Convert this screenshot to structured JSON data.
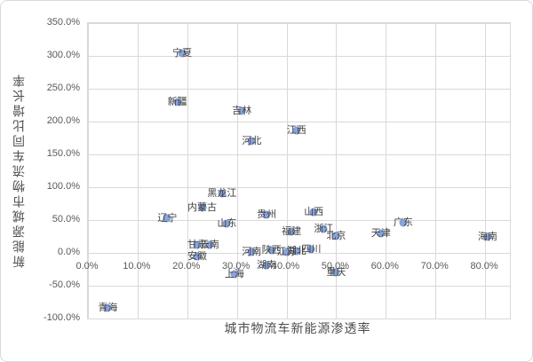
{
  "chart_data": {
    "type": "scatter",
    "title": "",
    "xlabel": "城市物流车新能源渗透率",
    "ylabel": "新能源城市物流车同比增长率",
    "xlim": [
      0,
      85
    ],
    "ylim": [
      -100,
      350
    ],
    "grid": true,
    "legend": false,
    "marker_color": "#89a5db",
    "gridline_color": "#d9d9d9",
    "tick_label_color": "#595959",
    "point_label_color": "#3f3f3f",
    "x_ticks": [
      "0.0%",
      "10.0%",
      "20.0%",
      "30.0%",
      "40.0%",
      "50.0%",
      "60.0%",
      "70.0%",
      "80.0%"
    ],
    "x_tick_values": [
      0,
      10,
      20,
      30,
      40,
      50,
      60,
      70,
      80
    ],
    "y_ticks": [
      "350.0%",
      "300.0%",
      "250.0%",
      "200.0%",
      "150.0%",
      "100.0%",
      "50.0%",
      "0.0%",
      "-50.0%",
      "-100.0%"
    ],
    "y_tick_values": [
      350,
      300,
      250,
      200,
      150,
      100,
      50,
      0,
      -50,
      -100
    ],
    "points": [
      {
        "label": "宁夏",
        "x": 19,
        "y": 304
      },
      {
        "label": "新疆",
        "x": 18,
        "y": 230
      },
      {
        "label": "吉林",
        "x": 31,
        "y": 216
      },
      {
        "label": "河北",
        "x": 33,
        "y": 170
      },
      {
        "label": "江西",
        "x": 42,
        "y": 186
      },
      {
        "label": "黑龙江",
        "x": 27,
        "y": 91
      },
      {
        "label": "内蒙古",
        "x": 23,
        "y": 69
      },
      {
        "label": "辽宁",
        "x": 16,
        "y": 53
      },
      {
        "label": "山东",
        "x": 28,
        "y": 44
      },
      {
        "label": "贵州",
        "x": 36,
        "y": 58
      },
      {
        "label": "山西",
        "x": 45.5,
        "y": 62
      },
      {
        "label": "福建",
        "x": 41,
        "y": 32
      },
      {
        "label": "浙江",
        "x": 47.5,
        "y": 36
      },
      {
        "label": "北京",
        "x": 50,
        "y": 26
      },
      {
        "label": "天津",
        "x": 59,
        "y": 30
      },
      {
        "label": "广东",
        "x": 63.5,
        "y": 46
      },
      {
        "label": "海南",
        "x": 80.5,
        "y": 25
      },
      {
        "label": "甘肃",
        "x": 22,
        "y": 12
      },
      {
        "label": "云南",
        "x": 24.5,
        "y": 12
      },
      {
        "label": "安徽",
        "x": 22,
        "y": -5
      },
      {
        "label": "河南",
        "x": 33,
        "y": 1
      },
      {
        "label": "陕西",
        "x": 37,
        "y": 4
      },
      {
        "label": "江苏",
        "x": 40,
        "y": 1
      },
      {
        "label": "湖北",
        "x": 42,
        "y": 3
      },
      {
        "label": "四川",
        "x": 45,
        "y": 5
      },
      {
        "label": "湖南",
        "x": 36,
        "y": -19
      },
      {
        "label": "上海",
        "x": 29.5,
        "y": -32
      },
      {
        "label": "重庆",
        "x": 50,
        "y": -30
      },
      {
        "label": "青海",
        "x": 4,
        "y": -84
      }
    ]
  }
}
